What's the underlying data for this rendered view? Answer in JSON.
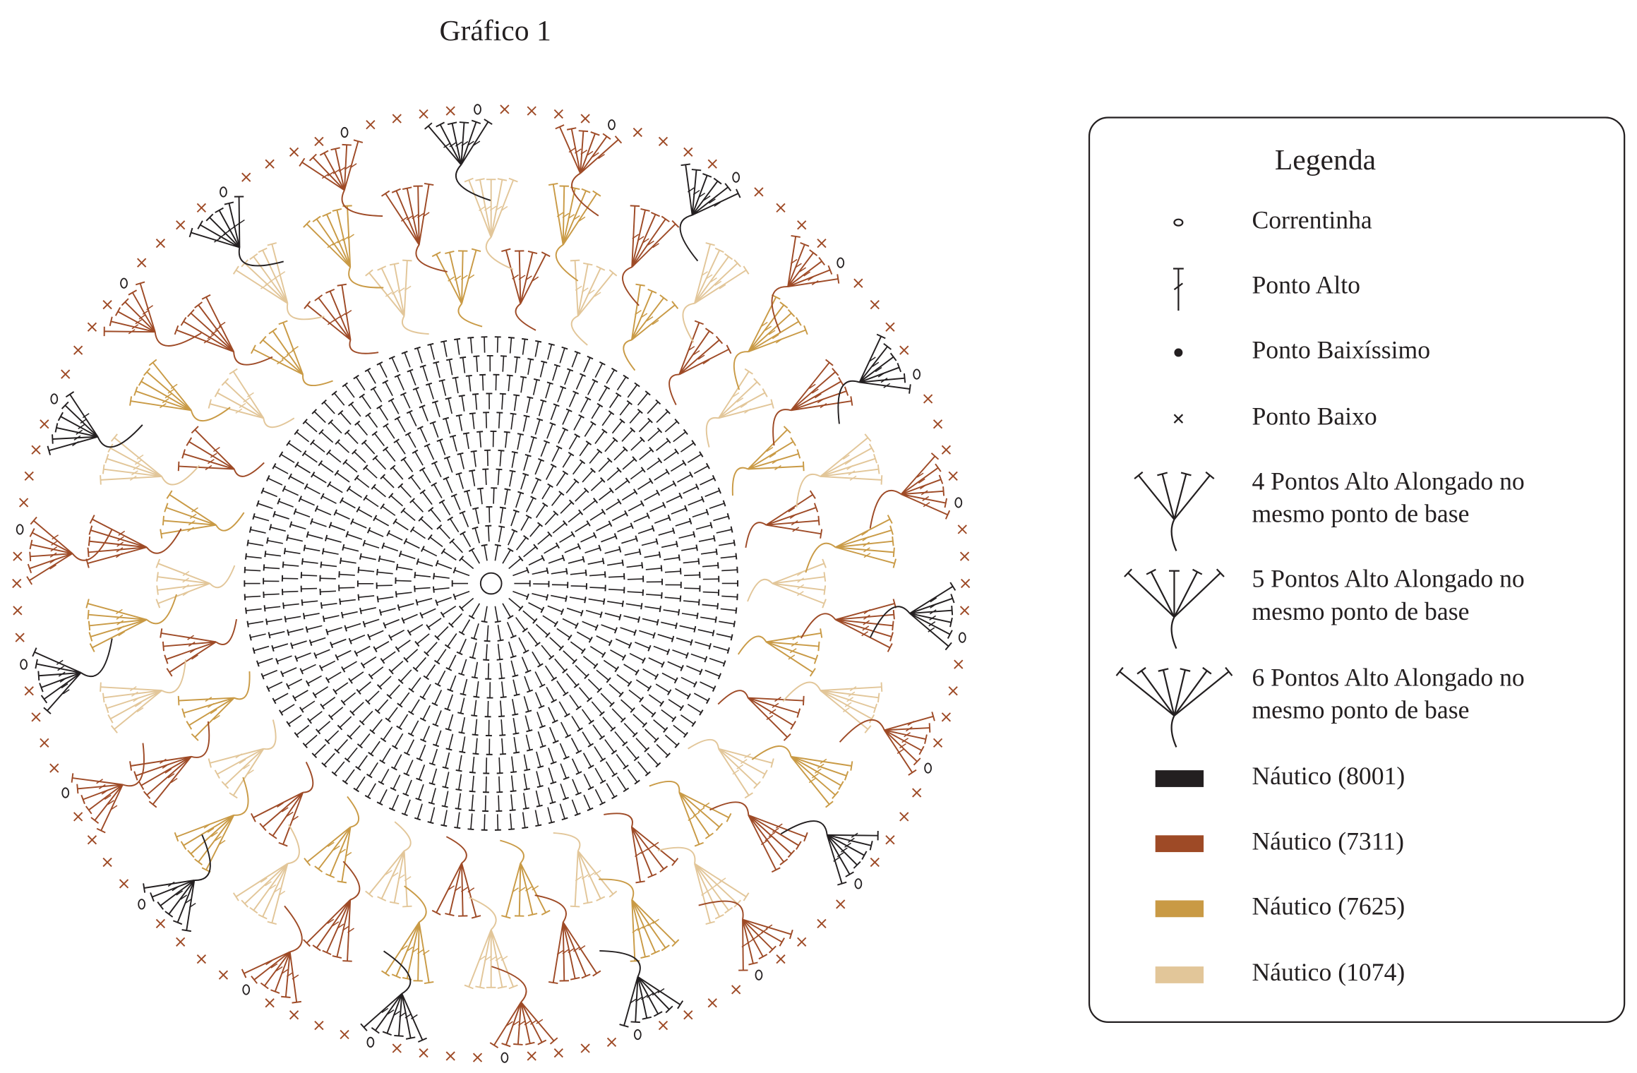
{
  "title": "Gráfico 1",
  "legend": {
    "title": "Legenda",
    "items": [
      {
        "label": [
          "Correntinha"
        ]
      },
      {
        "label": [
          "Ponto Alto"
        ]
      },
      {
        "label": [
          "Ponto Baixíssimo"
        ]
      },
      {
        "label": [
          "Ponto Baixo"
        ]
      },
      {
        "label": [
          "4 Pontos Alto Alongado no",
          "mesmo ponto de base"
        ]
      },
      {
        "label": [
          "5 Pontos Alto Alongado no",
          "mesmo ponto de base"
        ]
      },
      {
        "label": [
          "6 Pontos Alto Alongado no",
          "mesmo ponto de base"
        ]
      },
      {
        "label": [
          "Náutico (8001)"
        ],
        "color": "#231f20"
      },
      {
        "label": [
          "Náutico (7311)"
        ],
        "color": "#9e4a26"
      },
      {
        "label": [
          "Náutico (7625)"
        ],
        "color": "#c99a45"
      },
      {
        "label": [
          "Náutico (1074)"
        ],
        "color": "#e2c699"
      }
    ]
  }
}
